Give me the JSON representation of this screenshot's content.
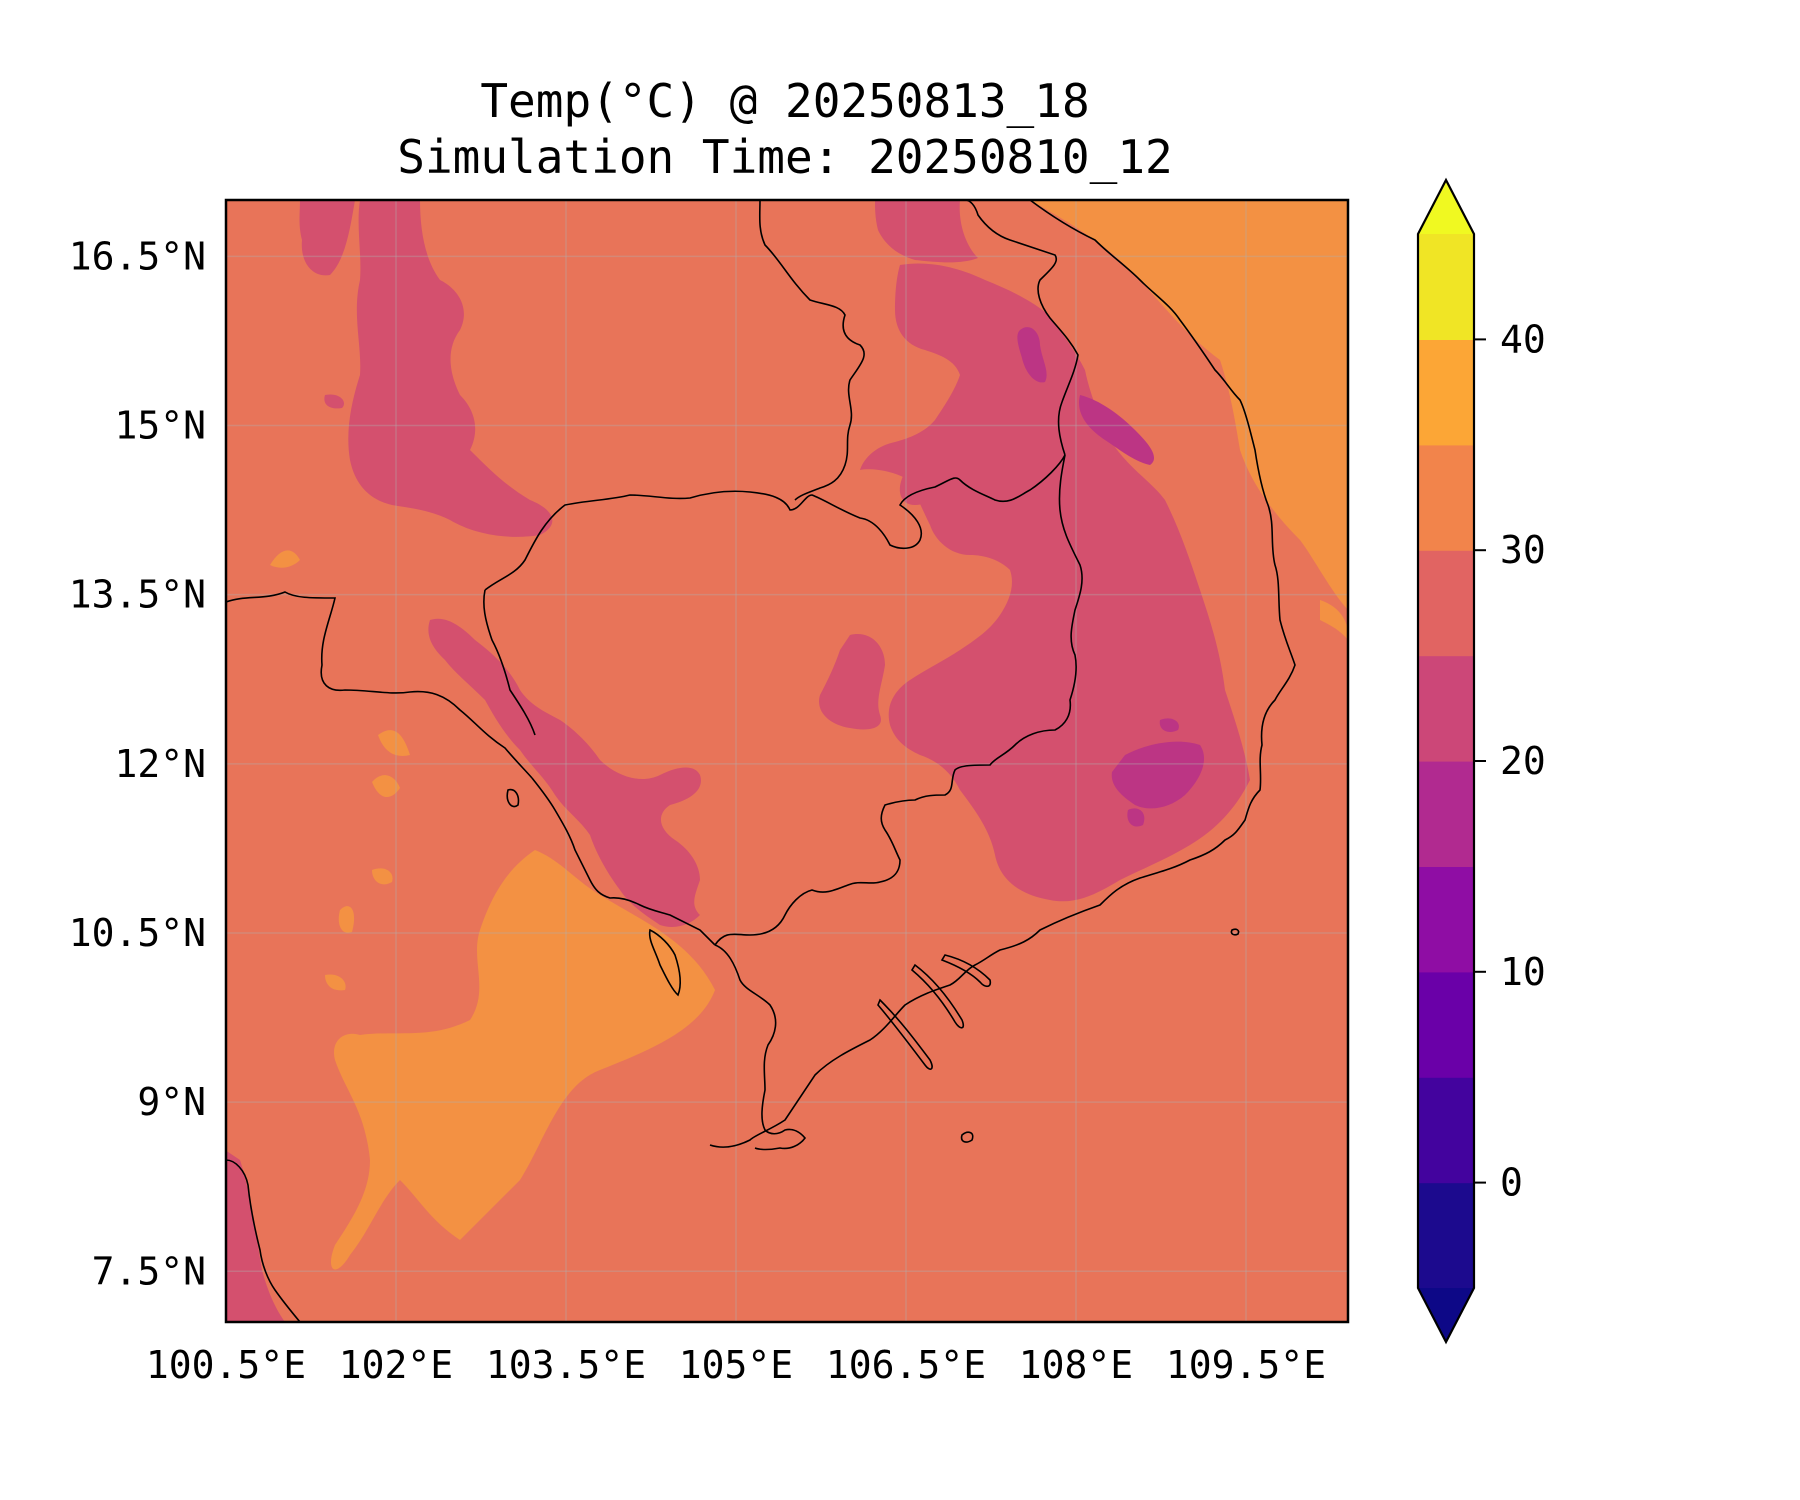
{
  "title": {
    "line1": "Temp(°C) @ 20250813_18",
    "line2": "Simulation Time: 20250810_12"
  },
  "axes": {
    "x_ticks": [
      {
        "value": 100.5,
        "label": "100.5°E"
      },
      {
        "value": 102,
        "label": "102°E"
      },
      {
        "value": 103.5,
        "label": "103.5°E"
      },
      {
        "value": 105,
        "label": "105°E"
      },
      {
        "value": 106.5,
        "label": "106.5°E"
      },
      {
        "value": 108,
        "label": "108°E"
      },
      {
        "value": 109.5,
        "label": "109.5°E"
      }
    ],
    "y_ticks": [
      {
        "value": 16.5,
        "label": "16.5°N"
      },
      {
        "value": 15,
        "label": "15°N"
      },
      {
        "value": 13.5,
        "label": "13.5°N"
      },
      {
        "value": 12,
        "label": "12°N"
      },
      {
        "value": 10.5,
        "label": "10.5°N"
      },
      {
        "value": 9,
        "label": "9°N"
      },
      {
        "value": 7.5,
        "label": "7.5°N"
      }
    ],
    "lon_range": [
      100.5,
      110.4
    ],
    "lat_range": [
      7.05,
      17.0
    ],
    "grid": true
  },
  "colorbar": {
    "levels": [
      -5,
      0,
      5,
      10,
      15,
      20,
      25,
      30,
      35,
      40,
      45
    ],
    "colors": [
      "#1c0a8e",
      "#43039e",
      "#6a00a8",
      "#8f0da4",
      "#b12a90",
      "#cc4778",
      "#e16462",
      "#f2844b",
      "#fca636",
      "#f0e525"
    ],
    "extend_min_color": "#0d0887",
    "extend_max_color": "#f0f921",
    "ticks": [
      {
        "value": 0,
        "label": "0"
      },
      {
        "value": 10,
        "label": "10"
      },
      {
        "value": 20,
        "label": "20"
      },
      {
        "value": 30,
        "label": "30"
      },
      {
        "value": 40,
        "label": "40"
      }
    ]
  },
  "map_colors": {
    "background": "#e87459",
    "cool": "#d4506e",
    "cooler": "#bc3584",
    "warm": "#f39143",
    "coastline": "#000000"
  }
}
